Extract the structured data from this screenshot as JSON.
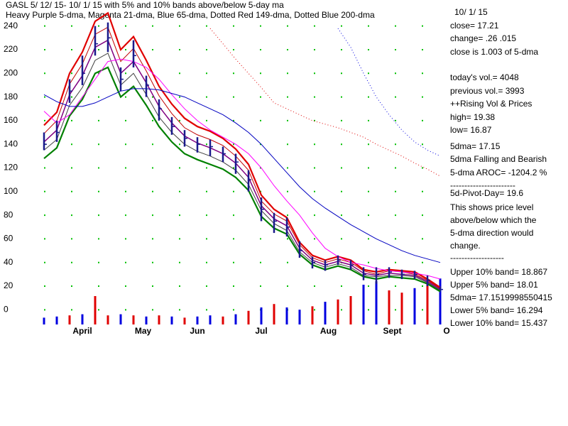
{
  "chart_data": {
    "type": "stock",
    "title": "GASL   5/ 12/ 15- 10/ 1/ 15 with  5% and 10% bands above/below 5-day ma",
    "subtitle": "Heavy Purple 5-dma, Magenta 21-dma, Blue 65-dma, Dotted Red 149-dma, Dotted Blue 200-dma",
    "x": [
      0,
      4,
      8,
      12,
      16,
      20,
      24,
      28,
      32,
      36,
      40,
      44,
      48,
      52,
      56,
      60,
      64,
      68,
      72,
      76,
      80,
      84,
      88,
      92,
      96,
      100,
      104,
      108,
      112,
      116,
      120,
      124
    ],
    "xlim": [
      0,
      126
    ],
    "xticks": [
      {
        "value": 12,
        "label": "April"
      },
      {
        "value": 31,
        "label": "May"
      },
      {
        "value": 48,
        "label": "Jun"
      },
      {
        "value": 68,
        "label": "Jul"
      },
      {
        "value": 89,
        "label": "Aug"
      },
      {
        "value": 109,
        "label": "Sept"
      },
      {
        "value": 126,
        "label": "O"
      }
    ],
    "ylim": [
      -4,
      244
    ],
    "yticks": [
      0,
      20,
      40,
      60,
      80,
      100,
      120,
      140,
      160,
      180,
      200,
      220,
      240
    ],
    "grid": true,
    "bar_color": "#1a1a8c",
    "high": [
      150,
      160,
      195,
      215,
      240,
      243,
      205,
      228,
      198,
      178,
      163,
      152,
      146,
      144,
      138,
      132,
      118,
      95,
      82,
      78,
      58,
      45,
      42,
      46,
      42,
      36,
      36,
      36,
      34,
      33,
      29,
      19.38
    ],
    "low": [
      135,
      142,
      175,
      190,
      215,
      218,
      185,
      205,
      180,
      160,
      148,
      138,
      133,
      130,
      125,
      115,
      100,
      75,
      65,
      62,
      44,
      35,
      33,
      38,
      34,
      25,
      22,
      27,
      26,
      26,
      20,
      16.87
    ],
    "close": [
      140,
      150,
      185,
      200,
      225,
      230,
      195,
      215,
      190,
      170,
      155,
      145,
      140,
      138,
      132,
      125,
      110,
      85,
      75,
      70,
      50,
      40,
      38,
      42,
      38,
      30,
      30,
      32,
      30,
      30,
      25,
      17.21
    ],
    "series": [
      {
        "name": "Upper 10% band",
        "color": "#e00000",
        "width": 2.2,
        "dash": false,
        "values": [
          156,
          167,
          200,
          218,
          244,
          251,
          220,
          231,
          211,
          189,
          174,
          162,
          155,
          151,
          145,
          136,
          123,
          97,
          85,
          78,
          57,
          46,
          42,
          45,
          42,
          34,
          32,
          34,
          33,
          32,
          26,
          18.867
        ]
      },
      {
        "name": "Upper 5% band",
        "color": "#c00000",
        "width": 1,
        "dash": false,
        "values": [
          149,
          160,
          191,
          208,
          233,
          239,
          210,
          221,
          202,
          181,
          166,
          154,
          148,
          144,
          139,
          130,
          118,
          92,
          81,
          75,
          55,
          44,
          40,
          43,
          40,
          33,
          30,
          33,
          32,
          30,
          25,
          18.01
        ]
      },
      {
        "name": "5-dma",
        "color": "#800080",
        "width": 1.5,
        "dash": false,
        "values": [
          142,
          152,
          182,
          198,
          222,
          228,
          200,
          210,
          192,
          172,
          158,
          147,
          141,
          137,
          132,
          124,
          112,
          88,
          77,
          71,
          52,
          42,
          38,
          41,
          38,
          31,
          29,
          31,
          30,
          29,
          24,
          17.15
        ]
      },
      {
        "name": "Lower 5% band",
        "color": "#404040",
        "width": 1,
        "dash": false,
        "values": [
          135,
          144,
          173,
          188,
          211,
          217,
          190,
          200,
          182,
          163,
          150,
          140,
          134,
          130,
          125,
          118,
          106,
          84,
          73,
          67,
          49,
          40,
          36,
          39,
          36,
          29,
          28,
          29,
          29,
          28,
          23,
          16.294
        ]
      },
      {
        "name": "Lower 10% band",
        "color": "#008000",
        "width": 2.2,
        "dash": false,
        "values": [
          128,
          137,
          164,
          178,
          200,
          205,
          180,
          189,
          173,
          155,
          142,
          132,
          127,
          123,
          119,
          112,
          101,
          79,
          69,
          64,
          47,
          38,
          34,
          37,
          34,
          28,
          26,
          28,
          27,
          26,
          22,
          15.437
        ]
      },
      {
        "name": "21-dma",
        "color": "#ff00ff",
        "width": 1,
        "dash": false,
        "values": [
          168,
          158,
          165,
          180,
          195,
          210,
          212,
          210,
          205,
          195,
          182,
          170,
          160,
          152,
          146,
          140,
          132,
          120,
          105,
          92,
          80,
          65,
          52,
          45,
          40,
          38,
          35,
          33,
          32,
          31,
          29,
          26
        ]
      },
      {
        "name": "65-dma",
        "color": "#0000c0",
        "width": 1,
        "dash": false,
        "values": [
          182,
          176,
          172,
          172,
          175,
          180,
          185,
          187,
          187,
          186,
          183,
          180,
          175,
          170,
          165,
          158,
          150,
          140,
          128,
          116,
          104,
          94,
          86,
          79,
          72,
          66,
          60,
          55,
          50,
          46,
          43,
          40
        ]
      },
      {
        "name": "149-dma",
        "color": "#e00000",
        "width": 1,
        "dash": true,
        "values": [
          null,
          null,
          null,
          null,
          null,
          null,
          null,
          null,
          null,
          null,
          null,
          null,
          null,
          238,
          225,
          212,
          200,
          188,
          175,
          170,
          165,
          160,
          157,
          154,
          150,
          146,
          140,
          135,
          130,
          124,
          119,
          113
        ]
      },
      {
        "name": "200-dma",
        "color": "#0000e0",
        "width": 1,
        "dash": true,
        "values": [
          null,
          null,
          null,
          null,
          null,
          null,
          null,
          null,
          null,
          null,
          null,
          null,
          null,
          null,
          null,
          null,
          null,
          null,
          null,
          null,
          null,
          null,
          null,
          238,
          222,
          200,
          180,
          165,
          152,
          142,
          135,
          130
        ]
      }
    ],
    "volume": [
      600,
      700,
      800,
      900,
      2500,
      800,
      900,
      800,
      700,
      800,
      700,
      600,
      700,
      800,
      700,
      900,
      1200,
      1500,
      1800,
      1500,
      1300,
      1600,
      2000,
      2200,
      2500,
      3500,
      3800,
      3000,
      2800,
      3200,
      3600,
      4048
    ],
    "volume_colors": [
      "#0000e0",
      "#0000e0",
      "#e00000",
      "#0000e0",
      "#e00000",
      "#e00000",
      "#0000e0",
      "#e00000",
      "#0000e0",
      "#e00000",
      "#0000e0",
      "#e00000",
      "#0000e0",
      "#0000e0",
      "#e00000",
      "#0000e0",
      "#e00000",
      "#0000e0",
      "#e00000",
      "#0000e0",
      "#0000e0",
      "#e00000",
      "#0000e0",
      "#e00000",
      "#e00000",
      "#0000e0",
      "#0000e0",
      "#e00000",
      "#e00000",
      "#0000e0",
      "#e00000",
      "#0000e0"
    ],
    "volume_lim": [
      0,
      5000
    ],
    "annotations": [
      "10/ 1/ 15",
      "close=  17.21",
      "change=  .26   .015",
      "close is  1.003  of 5-dma",
      "today's vol.=  4048",
      "previous vol.=  3993",
      "++Rising Vol & Prices",
      "high=  19.38",
      "low=  16.87",
      "5dma=  17.15",
      "5dma Falling and Bearish",
      "5-dma AROC=  -1204.2  %",
      "-----------------------",
      "5d-Pivot-Day= 19.6",
      "This shows price level",
      "above/below which the",
      "5-dma direction would",
      "change.",
      "-------------------",
      "Upper  10% band=  18.867",
      "Upper  5% band=  18.01",
      "5dma=  17.1519998550415",
      "Lower  5% band=  16.294",
      "Lower  10% band=  15.437"
    ]
  }
}
